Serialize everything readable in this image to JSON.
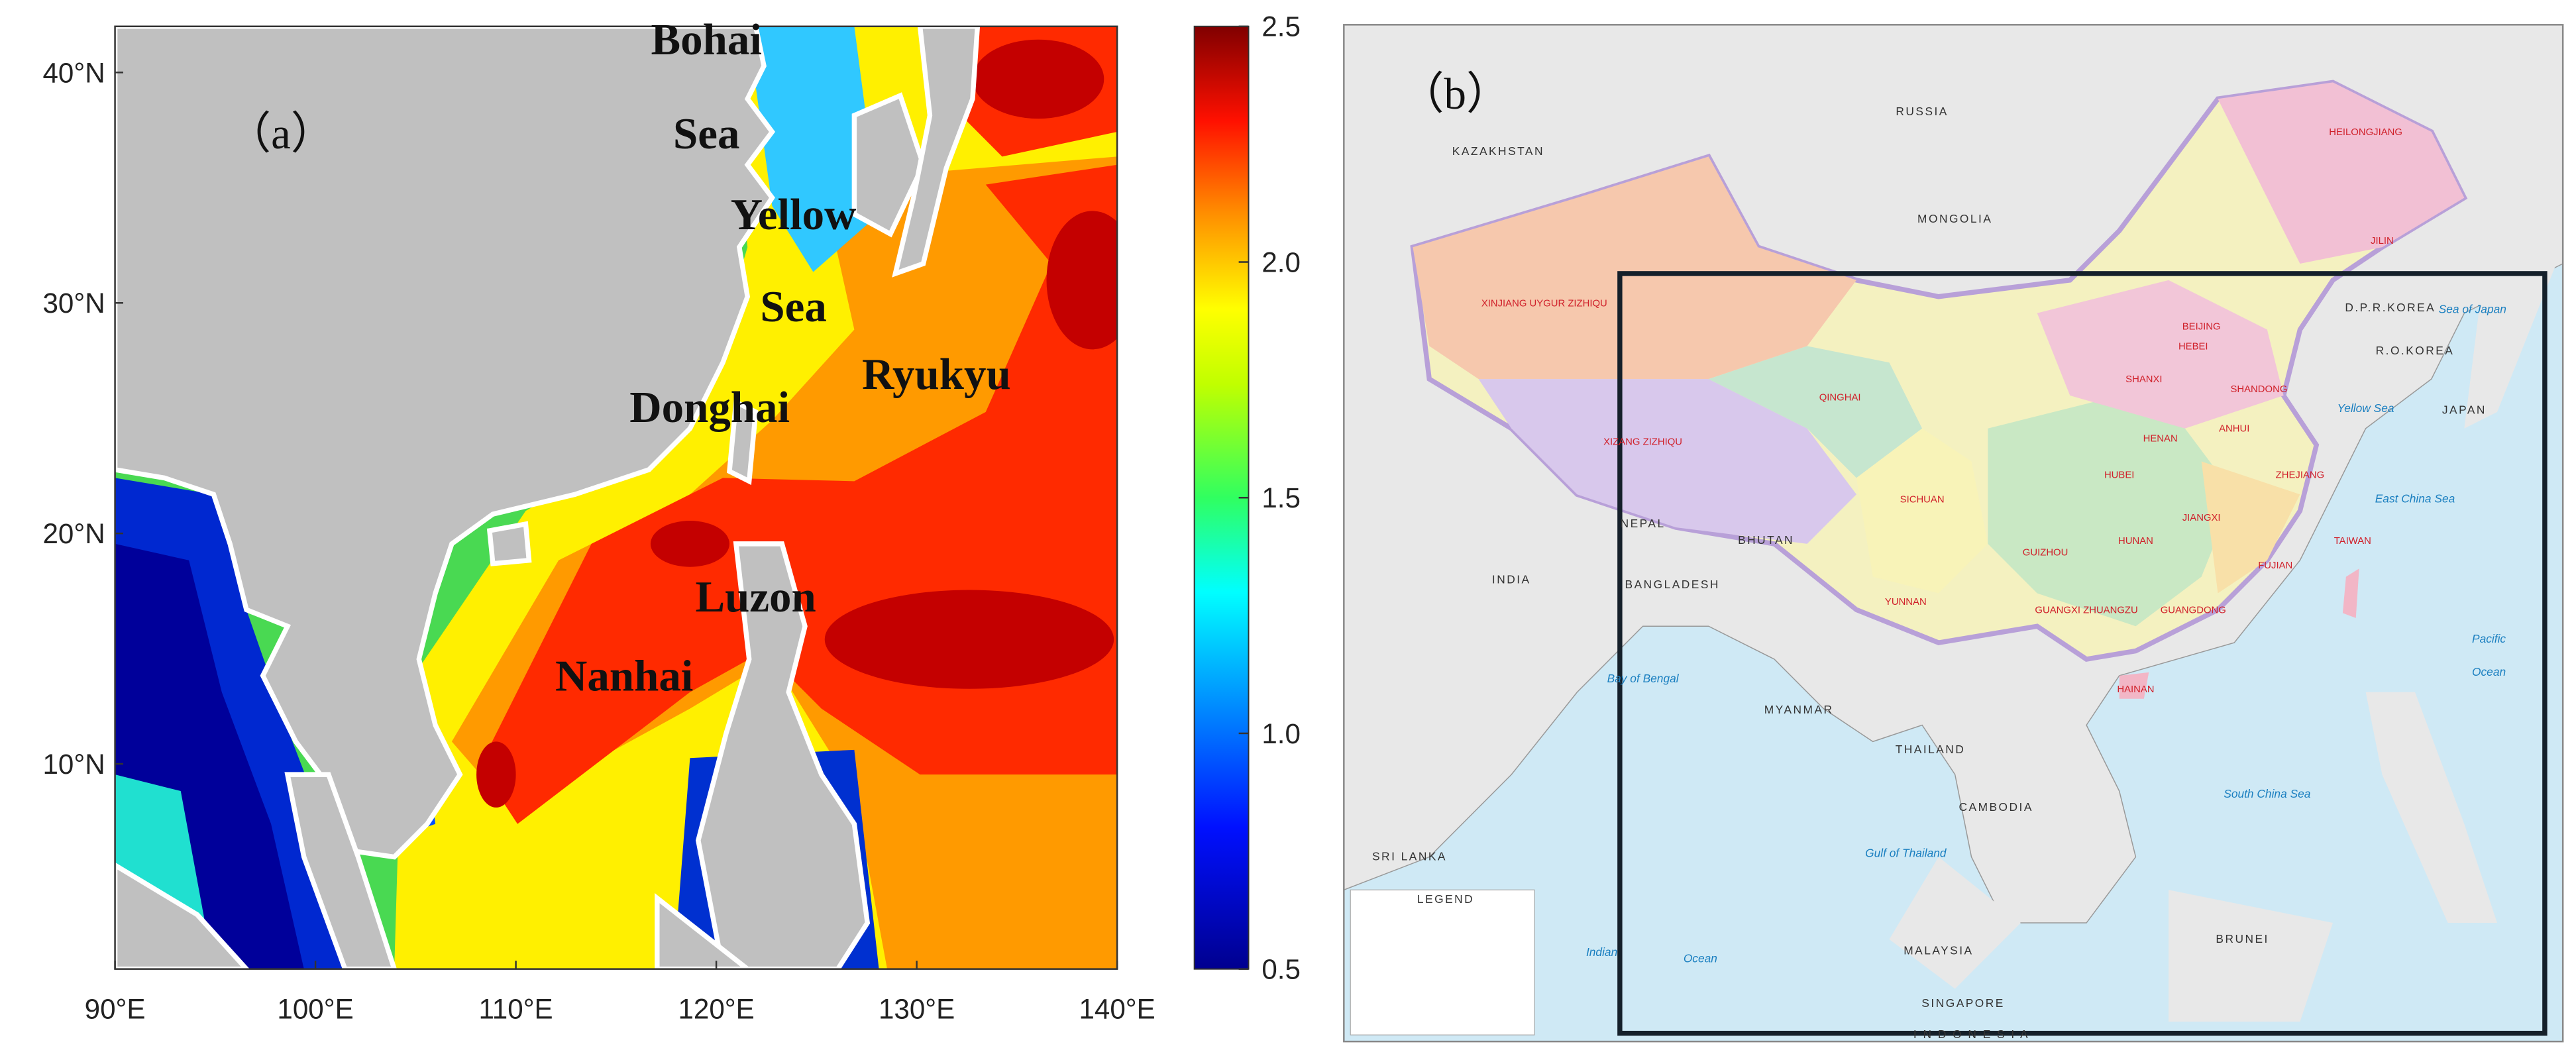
{
  "panel_a": {
    "label": "（a）",
    "xlim": [
      90,
      140
    ],
    "ylim": [
      1.1,
      42
    ],
    "xticks": [
      {
        "value": 90,
        "label": "90°E"
      },
      {
        "value": 100,
        "label": "100°E"
      },
      {
        "value": 110,
        "label": "110°E"
      },
      {
        "value": 120,
        "label": "120°E"
      },
      {
        "value": 130,
        "label": "130°E"
      },
      {
        "value": 140,
        "label": "140°E"
      }
    ],
    "yticks": [
      {
        "value": 10,
        "label": "10°N"
      },
      {
        "value": 20,
        "label": "20°N"
      },
      {
        "value": 30,
        "label": "30°N"
      },
      {
        "value": 40,
        "label": "40°N"
      }
    ],
    "region_labels": [
      "Bohai",
      "Sea",
      "Yellow",
      "Sea",
      "Donghai",
      "Ryukyu",
      "Luzon",
      "Nanhai"
    ],
    "colorbar": {
      "lim": [
        0.5,
        2.5
      ],
      "ticks": [
        0.5,
        {
          "value": 1,
          "label": "1.0"
        },
        1.5,
        {
          "value": 2,
          "label": "2.0"
        },
        2.5
      ]
    }
  },
  "panel_b": {
    "label": "（b）",
    "country_labels": [
      "RUSSIA",
      "KAZAKHSTAN",
      "MONGOLIA",
      "INDIA",
      "BANGLADESH",
      "BHUTAN",
      "NEPAL",
      "MYANMAR",
      "THAILAND",
      "CAMBODIA",
      "MALAYSIA",
      "SRI LANKA",
      "D.P.R.KOREA",
      "R.O.KOREA",
      "JAPAN",
      "I N D O N E S I A",
      "SINGAPORE",
      "BRUNEI"
    ],
    "sea_labels": [
      "Sea of Japan",
      "Yellow Sea",
      "East China Sea",
      "South China Sea",
      "Bay of Bengal",
      "Indian",
      "Ocean",
      "Pacific",
      "Ocean",
      "Gulf of Thailand"
    ],
    "province_labels": [
      "XINJIANG UYGUR ZIZHIQU",
      "XIZANG ZIZHIQU",
      "QINGHAI",
      "SICHUAN",
      "YUNNAN",
      "GUIZHOU",
      "HUNAN",
      "GUANGDONG",
      "GUANGXI ZHUANGZU",
      "FUJIAN",
      "JIANGXI",
      "HUBEI",
      "HENAN",
      "SHANXI",
      "SHANDONG",
      "HEBEI",
      "HEILONGJIANG",
      "JILIN",
      "ANHUI",
      "ZHEJIANG",
      "HAINAN",
      "BEIJING",
      "TAIWAN"
    ],
    "legend_title": "LEGEND"
  }
}
